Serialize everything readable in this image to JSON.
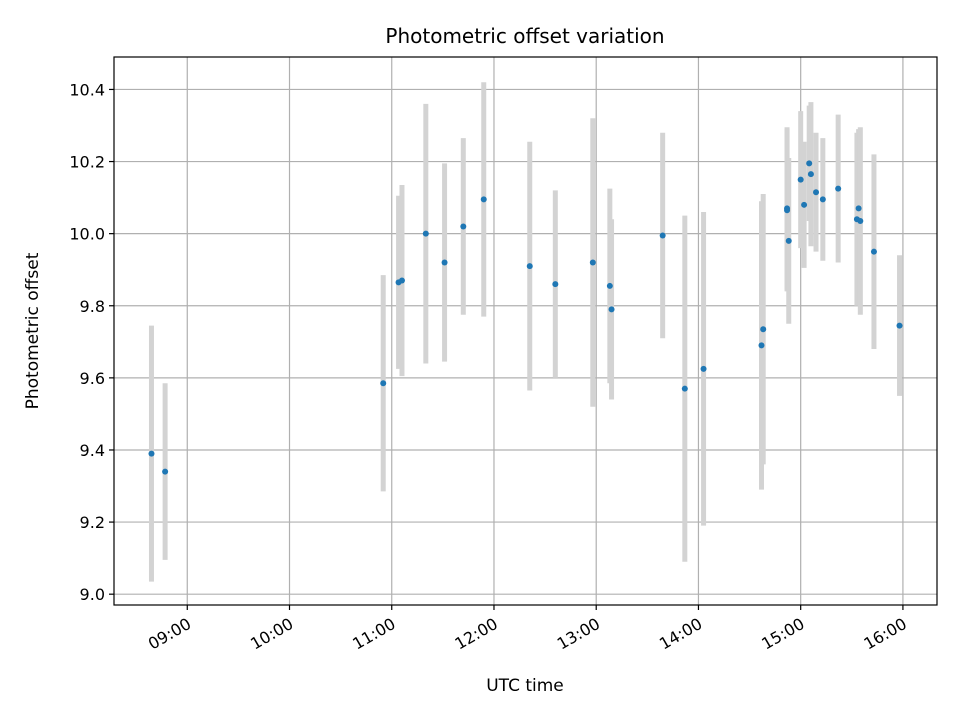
{
  "chart_data": {
    "type": "scatter",
    "title": "Photometric offset variation",
    "xlabel": "UTC time",
    "ylabel": "Photometric offset",
    "x_ticks": [
      "09:00",
      "10:00",
      "11:00",
      "12:00",
      "13:00",
      "14:00",
      "15:00",
      "16:00"
    ],
    "y_ticks": [
      "9.0",
      "9.2",
      "9.4",
      "9.6",
      "9.8",
      "10.0",
      "10.2",
      "10.4"
    ],
    "xlim": [
      "08:17",
      "16:20"
    ],
    "ylim": [
      8.97,
      10.49
    ],
    "grid": true,
    "marker_color": "#1f77b4",
    "errorbar_color": "#d3d3d3",
    "points": [
      {
        "t": "08:39",
        "y": 9.39,
        "err": 0.355
      },
      {
        "t": "08:47",
        "y": 9.34,
        "err": 0.245
      },
      {
        "t": "10:55",
        "y": 9.585,
        "err": 0.3
      },
      {
        "t": "11:04",
        "y": 9.865,
        "err": 0.24
      },
      {
        "t": "11:06",
        "y": 9.87,
        "err": 0.265
      },
      {
        "t": "11:20",
        "y": 10.0,
        "err": 0.36
      },
      {
        "t": "11:31",
        "y": 9.92,
        "err": 0.275
      },
      {
        "t": "11:42",
        "y": 10.02,
        "err": 0.245
      },
      {
        "t": "11:54",
        "y": 10.095,
        "err": 0.325
      },
      {
        "t": "12:21",
        "y": 9.91,
        "err": 0.345
      },
      {
        "t": "12:36",
        "y": 9.86,
        "err": 0.26
      },
      {
        "t": "12:58",
        "y": 9.92,
        "err": 0.4
      },
      {
        "t": "13:08",
        "y": 9.855,
        "err": 0.27
      },
      {
        "t": "13:09",
        "y": 9.79,
        "err": 0.25
      },
      {
        "t": "13:39",
        "y": 9.995,
        "err": 0.285
      },
      {
        "t": "13:52",
        "y": 9.57,
        "err": 0.48
      },
      {
        "t": "14:03",
        "y": 9.625,
        "err": 0.435
      },
      {
        "t": "14:37",
        "y": 9.69,
        "err": 0.4
      },
      {
        "t": "14:38",
        "y": 9.735,
        "err": 0.375
      },
      {
        "t": "14:52",
        "y": 10.07,
        "err": 0.225
      },
      {
        "t": "14:52",
        "y": 10.065,
        "err": 0.225
      },
      {
        "t": "14:53",
        "y": 9.98,
        "err": 0.23
      },
      {
        "t": "15:00",
        "y": 10.15,
        "err": 0.19
      },
      {
        "t": "15:02",
        "y": 10.08,
        "err": 0.175
      },
      {
        "t": "15:05",
        "y": 10.195,
        "err": 0.16
      },
      {
        "t": "15:06",
        "y": 10.165,
        "err": 0.2
      },
      {
        "t": "15:09",
        "y": 10.115,
        "err": 0.165
      },
      {
        "t": "15:13",
        "y": 10.095,
        "err": 0.17
      },
      {
        "t": "15:22",
        "y": 10.125,
        "err": 0.205
      },
      {
        "t": "15:33",
        "y": 10.04,
        "err": 0.24
      },
      {
        "t": "15:34",
        "y": 10.07,
        "err": 0.22
      },
      {
        "t": "15:35",
        "y": 10.035,
        "err": 0.26
      },
      {
        "t": "15:43",
        "y": 9.95,
        "err": 0.27
      },
      {
        "t": "15:58",
        "y": 9.745,
        "err": 0.195
      }
    ]
  }
}
